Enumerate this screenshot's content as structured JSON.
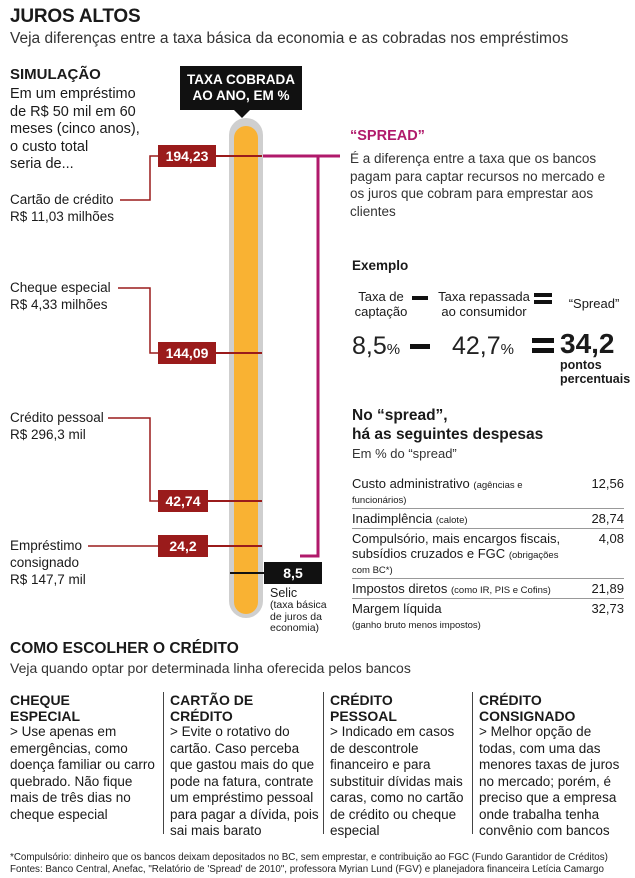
{
  "header": {
    "title": "JUROS ALTOS",
    "subtitle": "Veja diferenças entre a taxa básica da economia e as cobradas nos empréstimos"
  },
  "simulation": {
    "title": "SIMULAÇÃO",
    "text": "Em um empréstimo\nde R$ 50 mil em 60\nmeses (cinco anos),\no custo total\nseria de..."
  },
  "chart": {
    "taxa_label": "TAXA COBRADA\nAO ANO, EM %",
    "items": [
      {
        "label": "Cartão de crédito\nR$ 11,03 milhões",
        "value": "194,23"
      },
      {
        "label": "Cheque especial\nR$ 4,33 milhões",
        "value": "144,09"
      },
      {
        "label": "Crédito pessoal\nR$ 296,3 mil",
        "value": "42,74"
      },
      {
        "label": "Empréstimo\nconsignado\nR$ 147,7 mil",
        "value": "24,2"
      }
    ],
    "selic": {
      "value": "8,5",
      "label": "Selic",
      "note": "(taxa básica\nde juros da\neconomia)"
    },
    "colors": {
      "rate_box": "#9a1b1b",
      "tube": "#f9b233",
      "spread_line": "#b01a6b"
    }
  },
  "spread": {
    "title": "“SPREAD”",
    "text": "É a diferença entre a taxa que os bancos pagam para captar recursos no mercado e os juros que cobram para emprestar aos clientes"
  },
  "exemplo": {
    "title": "Exemplo",
    "captacao_label": "Taxa de\ncaptação",
    "repassada_label": "Taxa repassada\nao consumidor",
    "spread_label": "“Spread”",
    "captacao_value": "8,5",
    "captacao_unit": "%",
    "repassada_value": "42,7",
    "repassada_unit": "%",
    "spread_value": "34,2",
    "spread_unit": "pontos\npercentuais"
  },
  "despesas": {
    "title": "No “spread”,\nhá as seguintes despesas",
    "subtitle": "Em % do “spread”",
    "rows": [
      {
        "label": "Custo administrativo",
        "note": "(agências e funcionários)",
        "value": "12,56"
      },
      {
        "label": "Inadimplência",
        "note": "(calote)",
        "value": "28,74"
      },
      {
        "label": "Compulsório, mais encargos fiscais, subsídios cruzados e FGC",
        "note": "(obrigações com BC*)",
        "value": "4,08"
      },
      {
        "label": "Impostos diretos",
        "note": "(como IR, PIS e Cofins)",
        "value": "21,89"
      },
      {
        "label": "Margem líquida",
        "note": "(ganho bruto menos impostos)",
        "value": "32,73"
      }
    ]
  },
  "como": {
    "title": "COMO ESCOLHER O CRÉDITO",
    "subtitle": "Veja quando optar por determinada linha oferecida pelos bancos",
    "columns": [
      {
        "title": "CHEQUE\nESPECIAL",
        "text": "> Use apenas em emergências, como doença familiar ou carro quebrado. Não fique mais de três dias no cheque especial"
      },
      {
        "title": "CARTÃO DE\nCRÉDITO",
        "text": "> Evite o rotativo do cartão. Caso perceba que gastou mais do que pode na fatura, contrate um empréstimo pessoal para pagar a dívida, pois sai mais barato"
      },
      {
        "title": "CRÉDITO\nPESSOAL",
        "text": "> Indicado em casos de descontrole financeiro e para substituir dívidas mais caras, como no cartão de crédito ou cheque especial"
      },
      {
        "title": "CRÉDITO\nCONSIGNADO",
        "text": "> Melhor opção de todas, com uma das menores taxas de juros no mercado; porém, é preciso que a empresa onde trabalha tenha convênio com bancos"
      }
    ]
  },
  "footnote": "*Compulsório: dinheiro que os bancos deixam depositados no BC, sem emprestar, e contribuição ao FGC (Fundo Garantidor de Créditos)\nFontes: Banco Central, Anefac, \"Relatório de 'Spread' de 2010\", professora Myrian Lund (FGV) e planejadora financeira Letícia Camargo"
}
